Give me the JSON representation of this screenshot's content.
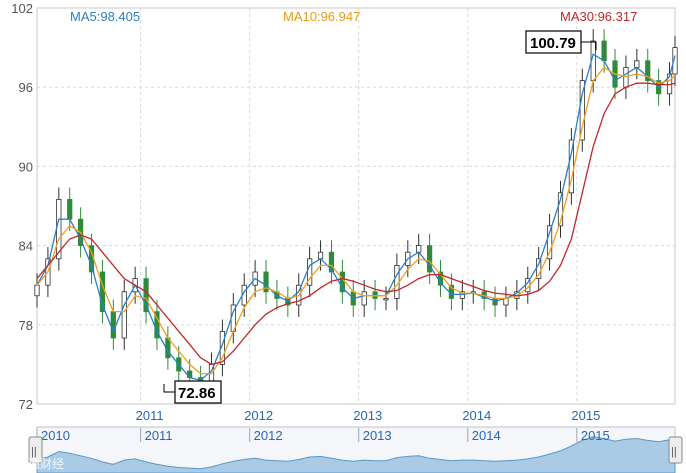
{
  "legend": {
    "ma5": "MA5:98.405",
    "ma10": "MA10:96.947",
    "ma30": "MA30:96.317"
  },
  "callouts": {
    "high": "100.79",
    "low": "72.86"
  },
  "navigator": {
    "labels": [
      "2010",
      "2011",
      "2012",
      "2013",
      "2014",
      "2015"
    ],
    "left_handle": "||",
    "right_handle": "||"
  },
  "watermark": "汇通财经",
  "colors": {
    "ma5": "#2a7fc7",
    "ma10": "#f0a020",
    "ma30": "#c0282a",
    "up": "#2f2f2f",
    "down": "#2e8b3a",
    "grid": "#d8d8d8",
    "navigator_fill": "#7fb2d9"
  },
  "chart_data": {
    "type": "candlestick",
    "title": "",
    "xlabel": "",
    "ylabel": "",
    "ylim": [
      72,
      102
    ],
    "yticks": [
      72,
      78,
      84,
      90,
      96,
      102
    ],
    "x_tick_labels": [
      "2011",
      "2012",
      "2013",
      "2014",
      "2015"
    ],
    "x_tick_positions": [
      2011.0,
      2012.0,
      2013.0,
      2014.0,
      2015.0
    ],
    "xlim": [
      2010.05,
      2015.9
    ],
    "grid": true,
    "high_marker": {
      "label": "100.79",
      "x": 2015.15,
      "value": 100.79
    },
    "low_marker": {
      "label": "72.86",
      "x": 2011.55,
      "value": 72.86
    },
    "series": [
      {
        "name": "price",
        "x": [
          2010.05,
          2010.15,
          2010.25,
          2010.35,
          2010.45,
          2010.55,
          2010.65,
          2010.75,
          2010.85,
          2010.95,
          2011.05,
          2011.15,
          2011.25,
          2011.35,
          2011.45,
          2011.55,
          2011.65,
          2011.75,
          2011.85,
          2011.95,
          2012.05,
          2012.15,
          2012.25,
          2012.35,
          2012.45,
          2012.55,
          2012.65,
          2012.75,
          2012.85,
          2012.95,
          2013.05,
          2013.15,
          2013.25,
          2013.35,
          2013.45,
          2013.55,
          2013.65,
          2013.75,
          2013.85,
          2013.95,
          2014.05,
          2014.15,
          2014.25,
          2014.35,
          2014.45,
          2014.55,
          2014.65,
          2014.75,
          2014.85,
          2014.95,
          2015.05,
          2015.15,
          2015.25,
          2015.35,
          2015.45,
          2015.55,
          2015.65,
          2015.75,
          2015.85,
          2015.9
        ],
        "values": [
          81.0,
          83.0,
          87.5,
          86.0,
          84.0,
          82.0,
          79.0,
          77.0,
          80.5,
          81.5,
          79.0,
          77.0,
          75.5,
          74.5,
          74.0,
          73.5,
          75.0,
          77.5,
          79.5,
          81.0,
          82.0,
          80.5,
          80.0,
          79.5,
          81.0,
          83.0,
          83.5,
          82.0,
          80.5,
          79.5,
          80.5,
          80.0,
          80.0,
          82.5,
          83.5,
          84.0,
          82.0,
          81.0,
          80.0,
          80.5,
          80.5,
          80.0,
          79.5,
          80.0,
          80.5,
          81.5,
          83.0,
          85.5,
          88.0,
          92.0,
          96.5,
          99.5,
          98.0,
          96.0,
          97.5,
          98.0,
          96.5,
          95.5,
          97.0,
          99.0
        ]
      },
      {
        "name": "MA5",
        "x": [
          2010.05,
          2010.15,
          2010.25,
          2010.35,
          2010.45,
          2010.55,
          2010.65,
          2010.75,
          2010.85,
          2010.95,
          2011.05,
          2011.15,
          2011.25,
          2011.35,
          2011.45,
          2011.55,
          2011.65,
          2011.75,
          2011.85,
          2011.95,
          2012.05,
          2012.15,
          2012.25,
          2012.35,
          2012.45,
          2012.55,
          2012.65,
          2012.75,
          2012.85,
          2012.95,
          2013.05,
          2013.15,
          2013.25,
          2013.35,
          2013.45,
          2013.55,
          2013.65,
          2013.75,
          2013.85,
          2013.95,
          2014.05,
          2014.15,
          2014.25,
          2014.35,
          2014.45,
          2014.55,
          2014.65,
          2014.75,
          2014.85,
          2014.95,
          2015.05,
          2015.15,
          2015.25,
          2015.35,
          2015.45,
          2015.55,
          2015.65,
          2015.75,
          2015.85,
          2015.9
        ],
        "values": [
          81.0,
          82.5,
          86.0,
          86.0,
          84.5,
          82.5,
          79.5,
          77.5,
          79.5,
          81.0,
          79.5,
          77.5,
          76.0,
          75.0,
          74.0,
          73.8,
          74.5,
          76.5,
          79.0,
          80.5,
          81.5,
          81.0,
          80.2,
          79.8,
          80.5,
          82.5,
          83.0,
          82.2,
          80.8,
          80.0,
          80.2,
          80.2,
          80.2,
          81.8,
          83.0,
          83.5,
          82.5,
          81.2,
          80.3,
          80.3,
          80.4,
          80.1,
          79.8,
          80.0,
          80.4,
          81.2,
          82.6,
          85.0,
          87.5,
          91.0,
          95.5,
          98.5,
          98.0,
          96.5,
          97.0,
          97.5,
          96.8,
          96.0,
          96.8,
          98.4
        ]
      },
      {
        "name": "MA10",
        "x": [
          2010.05,
          2010.15,
          2010.25,
          2010.35,
          2010.45,
          2010.55,
          2010.65,
          2010.75,
          2010.85,
          2010.95,
          2011.05,
          2011.15,
          2011.25,
          2011.35,
          2011.45,
          2011.55,
          2011.65,
          2011.75,
          2011.85,
          2011.95,
          2012.05,
          2012.15,
          2012.25,
          2012.35,
          2012.45,
          2012.55,
          2012.65,
          2012.75,
          2012.85,
          2012.95,
          2013.05,
          2013.15,
          2013.25,
          2013.35,
          2013.45,
          2013.55,
          2013.65,
          2013.75,
          2013.85,
          2013.95,
          2014.05,
          2014.15,
          2014.25,
          2014.35,
          2014.45,
          2014.55,
          2014.65,
          2014.75,
          2014.85,
          2014.95,
          2015.05,
          2015.15,
          2015.25,
          2015.35,
          2015.45,
          2015.55,
          2015.65,
          2015.75,
          2015.85,
          2015.9
        ],
        "values": [
          81.0,
          82.0,
          84.5,
          85.5,
          85.0,
          83.5,
          81.0,
          79.0,
          79.0,
          80.2,
          80.0,
          78.5,
          77.0,
          76.0,
          75.0,
          74.3,
          74.3,
          75.5,
          77.5,
          79.3,
          80.5,
          80.8,
          80.5,
          80.0,
          80.2,
          81.5,
          82.5,
          82.5,
          81.5,
          80.5,
          80.2,
          80.2,
          80.2,
          81.0,
          82.2,
          83.0,
          82.8,
          81.8,
          80.8,
          80.4,
          80.4,
          80.2,
          80.0,
          80.0,
          80.2,
          80.8,
          81.8,
          83.5,
          85.8,
          89.0,
          93.0,
          96.5,
          97.5,
          97.0,
          96.8,
          97.0,
          96.8,
          96.3,
          96.5,
          96.9
        ]
      },
      {
        "name": "MA30",
        "x": [
          2010.05,
          2010.15,
          2010.25,
          2010.35,
          2010.45,
          2010.55,
          2010.65,
          2010.75,
          2010.85,
          2010.95,
          2011.05,
          2011.15,
          2011.25,
          2011.35,
          2011.45,
          2011.55,
          2011.65,
          2011.75,
          2011.85,
          2011.95,
          2012.05,
          2012.15,
          2012.25,
          2012.35,
          2012.45,
          2012.55,
          2012.65,
          2012.75,
          2012.85,
          2012.95,
          2013.05,
          2013.15,
          2013.25,
          2013.35,
          2013.45,
          2013.55,
          2013.65,
          2013.75,
          2013.85,
          2013.95,
          2014.05,
          2014.15,
          2014.25,
          2014.35,
          2014.45,
          2014.55,
          2014.65,
          2014.75,
          2014.85,
          2014.95,
          2015.05,
          2015.15,
          2015.25,
          2015.35,
          2015.45,
          2015.55,
          2015.65,
          2015.75,
          2015.85,
          2015.9
        ],
        "values": [
          81.5,
          82.5,
          83.5,
          84.5,
          84.8,
          84.5,
          83.5,
          82.5,
          81.5,
          81.0,
          80.5,
          79.5,
          78.5,
          77.5,
          76.5,
          75.5,
          75.0,
          75.2,
          76.0,
          77.0,
          78.0,
          78.8,
          79.3,
          79.6,
          79.8,
          80.2,
          80.8,
          81.3,
          81.5,
          81.3,
          81.0,
          80.7,
          80.5,
          80.6,
          81.0,
          81.5,
          81.8,
          81.8,
          81.5,
          81.2,
          80.9,
          80.6,
          80.4,
          80.3,
          80.2,
          80.3,
          80.6,
          81.3,
          82.5,
          84.5,
          88.0,
          91.5,
          94.0,
          95.5,
          96.0,
          96.3,
          96.3,
          96.2,
          96.2,
          96.3
        ]
      }
    ]
  }
}
